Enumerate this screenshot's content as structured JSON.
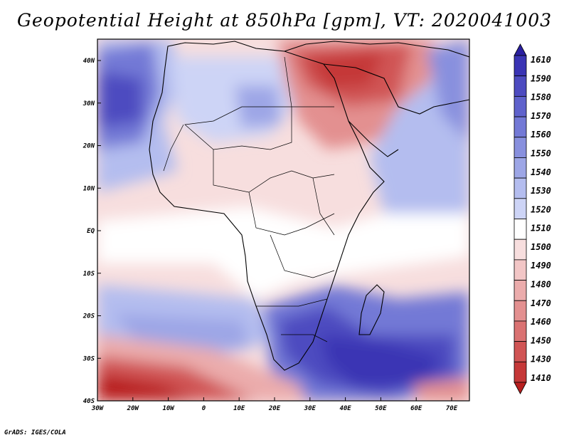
{
  "title": "Geopotential Height at 850hPa [gpm], VT: 2020041003",
  "credit": "GrADS: IGES/COLA",
  "map": {
    "lat_labels": [
      "40N",
      "30N",
      "20N",
      "10N",
      "EQ",
      "10S",
      "20S",
      "30S",
      "40S"
    ],
    "lon_labels": [
      "30W",
      "20W",
      "10W",
      "0",
      "10E",
      "20E",
      "30E",
      "40E",
      "50E",
      "60E",
      "70E"
    ]
  },
  "colorbar": {
    "labels": [
      "1610",
      "1590",
      "1580",
      "1570",
      "1560",
      "1550",
      "1540",
      "1530",
      "1520",
      "1510",
      "1500",
      "1490",
      "1480",
      "1470",
      "1460",
      "1450",
      "1430",
      "1410"
    ],
    "colors": [
      "#2a1fa0",
      "#3a34b4",
      "#4d4bc0",
      "#5f62cc",
      "#7379d6",
      "#8890de",
      "#9da6e6",
      "#b4bdef",
      "#cdd4f6",
      "#ffffff",
      "#f7dede",
      "#f2c6c6",
      "#ebacac",
      "#e39090",
      "#da7272",
      "#d05454",
      "#c53838",
      "#b81f1f"
    ]
  }
}
